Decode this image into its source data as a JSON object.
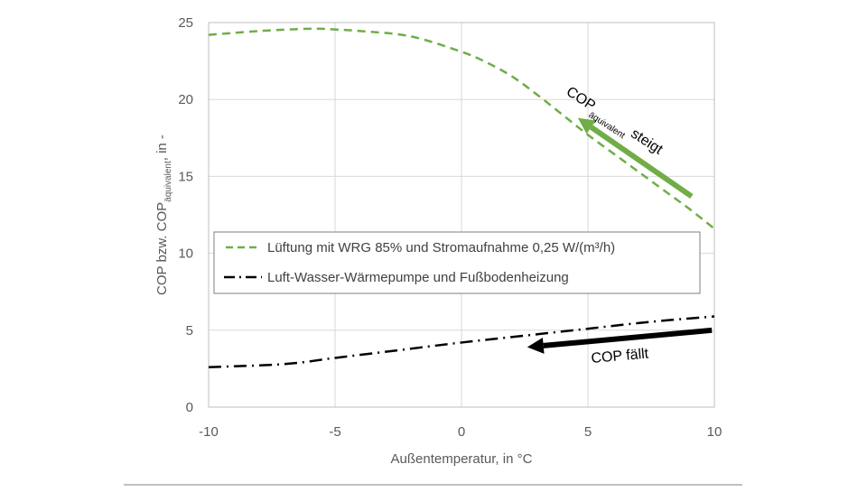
{
  "chart_data": {
    "type": "line",
    "xlabel": "Außentemperatur, in °C",
    "ylabel_main": "COP bzw. COP",
    "ylabel_sub": "äquivalent",
    "ylabel_tail": ", in -",
    "xlim": [
      -10,
      10
    ],
    "ylim": [
      0,
      25
    ],
    "xticks": [
      -10,
      -5,
      0,
      5,
      10
    ],
    "yticks": [
      0,
      5,
      10,
      15,
      20,
      25
    ],
    "grid": true,
    "legend_position": "center",
    "series": [
      {
        "name": "Lüftung mit WRG 85% und Stromaufnahme 0,25 W/(m³/h)",
        "color": "#70ad47",
        "style": "dashed",
        "x": [
          -10,
          -8,
          -6,
          -5,
          -4,
          -2,
          0,
          1,
          2,
          3,
          4,
          5,
          6,
          7,
          8,
          9,
          10
        ],
        "y": [
          24.2,
          24.45,
          24.6,
          24.55,
          24.45,
          24.1,
          23.1,
          22.4,
          21.5,
          20.3,
          19.0,
          17.7,
          16.5,
          15.3,
          14.1,
          12.9,
          11.6
        ]
      },
      {
        "name": "Luft-Wasser-Wärmepumpe und Fußbodenheizung",
        "color": "#000000",
        "style": "dashdot",
        "x": [
          -10,
          -7,
          -5,
          -2.5,
          0,
          2.5,
          5,
          7.5,
          10
        ],
        "y": [
          2.6,
          2.8,
          3.2,
          3.7,
          4.2,
          4.65,
          5.1,
          5.55,
          5.9
        ]
      }
    ],
    "annotations": [
      {
        "text_main": "COP",
        "text_sub": "äquivalent",
        "text_tail": "steigt",
        "color": "#70ad47",
        "from": [
          9.1,
          13.7
        ],
        "to": [
          4.6,
          18.8
        ]
      },
      {
        "text": "COP fällt",
        "color": "#000000",
        "from": [
          9.9,
          5.0
        ],
        "to": [
          2.6,
          3.9
        ]
      }
    ]
  }
}
